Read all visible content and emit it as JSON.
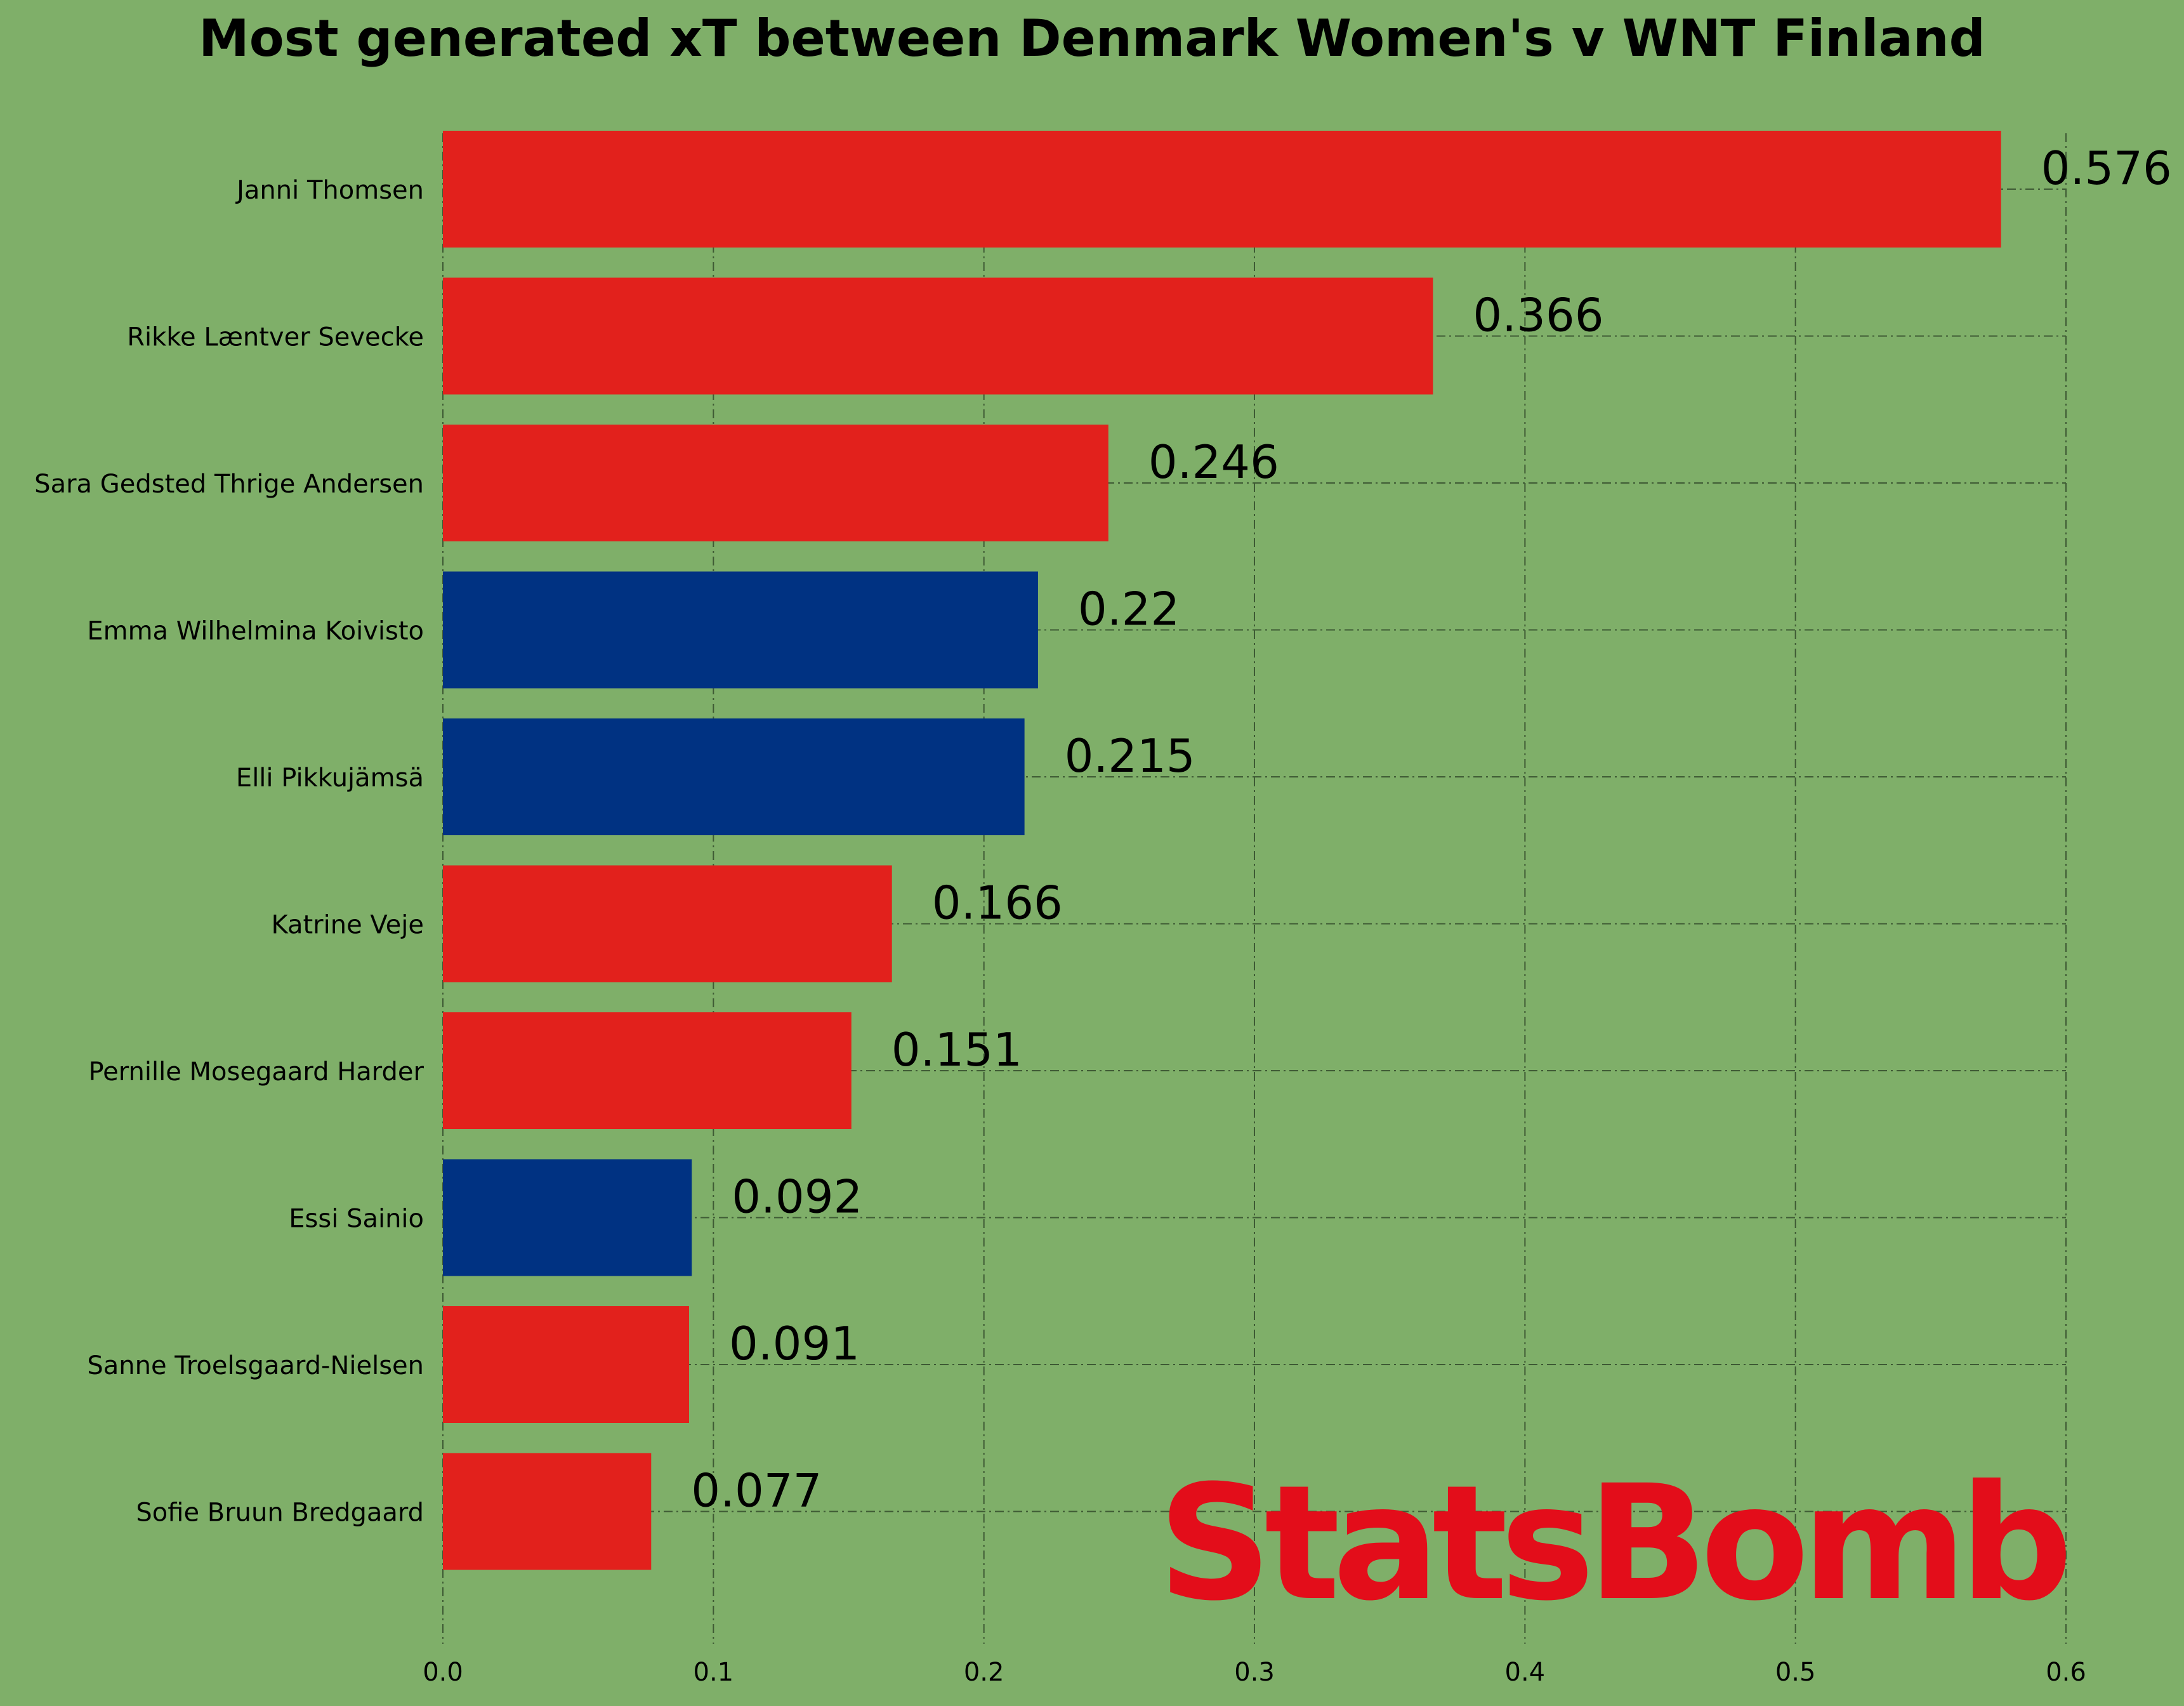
{
  "chart_data": {
    "type": "bar",
    "orientation": "horizontal",
    "title": "Most generated xT between Denmark Women's v WNT Finland",
    "xlabel": "",
    "ylabel": "",
    "xlim": [
      0,
      0.6
    ],
    "xticks": [
      0.0,
      0.1,
      0.2,
      0.3,
      0.4,
      0.5,
      0.6
    ],
    "xtick_labels": [
      "0.0",
      "0.1",
      "0.2",
      "0.3",
      "0.4",
      "0.5",
      "0.6"
    ],
    "grid": true,
    "categories": [
      "Janni Thomsen",
      "Rikke Læntver Sevecke",
      "Sara Gedsted Thrige Andersen",
      "Emma Wilhelmina Koivisto",
      "Elli Pikkujämsä",
      "Katrine Veje",
      "Pernille Mosegaard Harder",
      "Essi Sainio",
      "Sanne Troelsgaard-Nielsen",
      "Sofie Bruun Bredgaard"
    ],
    "values": [
      0.576,
      0.366,
      0.246,
      0.22,
      0.215,
      0.166,
      0.151,
      0.092,
      0.091,
      0.077
    ],
    "value_labels": [
      "0.576",
      "0.366",
      "0.246",
      "0.22",
      "0.215",
      "0.166",
      "0.151",
      "0.092",
      "0.091",
      "0.077"
    ],
    "bar_colors": [
      "#e2211c",
      "#e2211c",
      "#e2211c",
      "#003282",
      "#003282",
      "#e2211c",
      "#e2211c",
      "#003282",
      "#e2211c",
      "#e2211c"
    ]
  },
  "watermark": "StatsBomb",
  "colors": {
    "background": "#7faf69",
    "denmark": "#e2211c",
    "finland": "#003282",
    "watermark": "#e30d1a",
    "grid": "#3e5a34",
    "text": "#000000"
  }
}
